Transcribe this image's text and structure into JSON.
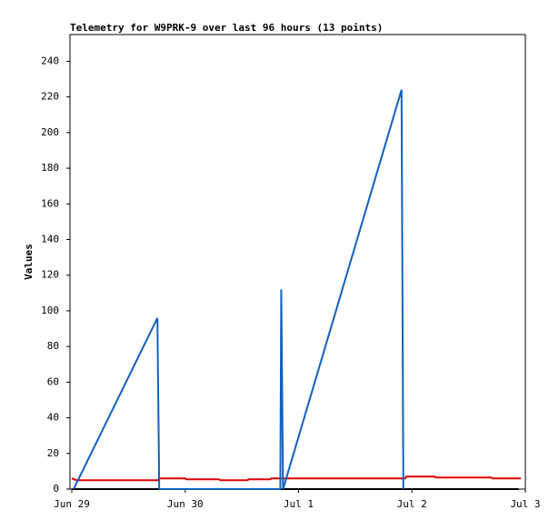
{
  "chart_data": {
    "type": "line",
    "title": "Telemetry for W9PRK-9 over last 96 hours (13 points)",
    "y_label": "Values",
    "xlim": [
      -0.016,
      4.0
    ],
    "xticks": [
      {
        "value": 0,
        "label": "Jun 29"
      },
      {
        "value": 1,
        "label": "Jun 30"
      },
      {
        "value": 2,
        "label": "Jul 1"
      },
      {
        "value": 3,
        "label": "Jul 2"
      },
      {
        "value": 4,
        "label": "Jul 3"
      }
    ],
    "ylim": [
      0,
      255
    ],
    "yticks": [
      0,
      20,
      40,
      60,
      80,
      100,
      120,
      140,
      160,
      180,
      200,
      220,
      240
    ],
    "series": [
      {
        "color": "#000000",
        "x": [
          0.0,
          3.94
        ],
        "values": [
          0,
          0
        ]
      },
      {
        "color": "#e00000",
        "x": [
          0,
          0.04,
          0.76,
          0.77,
          1.0,
          1.01,
          1.3,
          1.31,
          1.55,
          1.56,
          1.75,
          1.76,
          2.94,
          2.95,
          3.2,
          3.21,
          3.7,
          3.71,
          3.96
        ],
        "values": [
          6,
          5,
          5,
          6,
          6,
          5.5,
          5.5,
          5,
          5,
          5.5,
          5.5,
          6,
          6,
          7,
          7,
          6.5,
          6.5,
          6,
          6
        ]
      },
      {
        "color": "#1060c0",
        "x": [
          0.016,
          0.755,
          0.763,
          0.771,
          1.839,
          1.847,
          1.855,
          1.863,
          2.908,
          2.916,
          2.924
        ],
        "values": [
          0,
          96,
          48,
          0,
          0,
          112,
          56,
          0,
          224,
          112,
          0
        ]
      }
    ]
  }
}
